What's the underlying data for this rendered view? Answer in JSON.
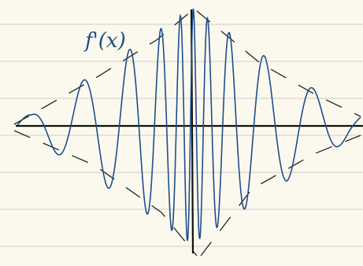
{
  "label": "f'(x)"
}
